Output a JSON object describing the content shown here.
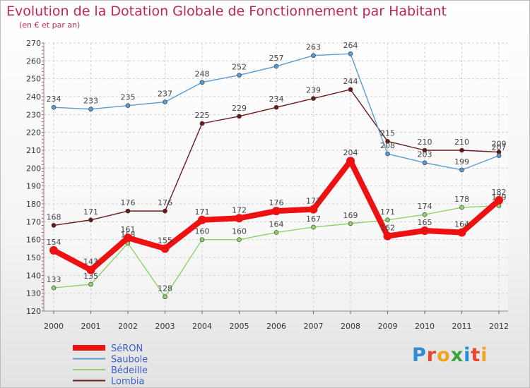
{
  "header": {
    "title": "Evolution de la Dotation Globale de Fonctionnement par Habitant",
    "subtitle": "(en € et par an)"
  },
  "logo": {
    "text": "Proxiti",
    "letters": [
      {
        "ch": "P",
        "color": "#2e8bd6"
      },
      {
        "ch": "r",
        "color": "#e8452c"
      },
      {
        "ch": "o",
        "color": "#f0a51e"
      },
      {
        "ch": "x",
        "color": "#3aa43c"
      },
      {
        "ch": "i",
        "color": "#2e8bd6"
      },
      {
        "ch": "t",
        "color": "#e8452c"
      },
      {
        "ch": "i",
        "color": "#f0a51e"
      }
    ]
  },
  "chart_data": {
    "type": "line",
    "title": "Evolution de la Dotation Globale de Fonctionnement par Habitant",
    "subtitle": "(en € et par an)",
    "x": [
      "2000",
      "2001",
      "2002",
      "2003",
      "2004",
      "2005",
      "2006",
      "2007",
      "2008",
      "2009",
      "2010",
      "2011",
      "2012"
    ],
    "ylim": [
      120,
      270
    ],
    "yticks": [
      120,
      130,
      140,
      150,
      160,
      170,
      180,
      190,
      200,
      210,
      220,
      230,
      240,
      250,
      260,
      270
    ],
    "grid": true,
    "legend_position": "bottom-left",
    "series": [
      {
        "name": "Lombia",
        "color": "#6b1a1a",
        "values": [
          168,
          171,
          176,
          176,
          225,
          229,
          234,
          239,
          244,
          215,
          210,
          210,
          209
        ]
      },
      {
        "name": "Saubole",
        "color": "#5b9bd5",
        "values": [
          234,
          233,
          235,
          237,
          248,
          252,
          257,
          263,
          264,
          208,
          203,
          199,
          207
        ]
      },
      {
        "name": "Bédeille",
        "color": "#8fd16a",
        "values": [
          133,
          135,
          158,
          128,
          160,
          160,
          164,
          167,
          169,
          171,
          174,
          178,
          179
        ]
      },
      {
        "name": "SéRON",
        "color": "#ee1111",
        "values": [
          154,
          143,
          161,
          155,
          171,
          172,
          176,
          177,
          204,
          162,
          165,
          164,
          182
        ]
      }
    ]
  }
}
